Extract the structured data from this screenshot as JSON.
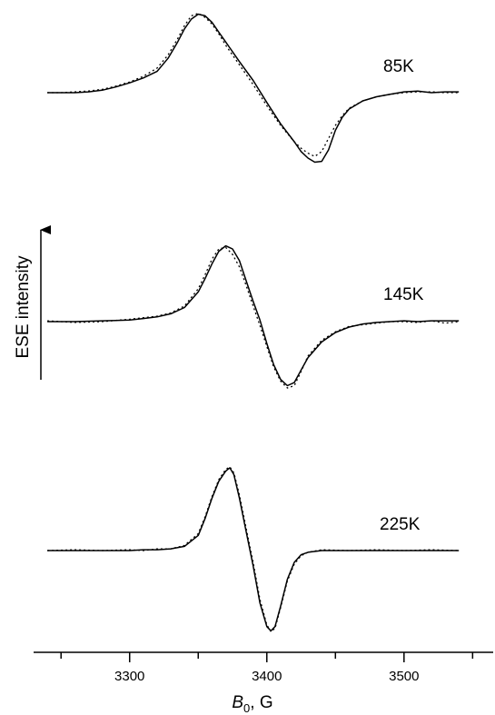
{
  "chart_data": {
    "type": "line",
    "xlabel_symbol": "B",
    "xlabel_subscript": "0",
    "xlabel_unit": ", G",
    "ylabel": "ESE intensity",
    "xlim": [
      3230,
      3565
    ],
    "x_ticks": [
      3300,
      3400,
      3500
    ],
    "grid": false,
    "legend": "none",
    "line_color": "#000000",
    "panels": [
      {
        "label": "85K",
        "series": [
          {
            "style": "solid",
            "x": [
              3240,
              3250,
              3260,
              3270,
              3280,
              3290,
              3300,
              3310,
              3320,
              3328,
              3335,
              3340,
              3345,
              3350,
              3355,
              3360,
              3365,
              3370,
              3380,
              3390,
              3400,
              3410,
              3420,
              3425,
              3430,
              3435,
              3440,
              3445,
              3450,
              3455,
              3460,
              3470,
              3480,
              3490,
              3500,
              3510,
              3520,
              3530,
              3540
            ],
            "y": [
              0.0,
              0.0,
              0.0,
              0.01,
              0.03,
              0.07,
              0.12,
              0.18,
              0.26,
              0.42,
              0.62,
              0.78,
              0.9,
              0.96,
              0.94,
              0.86,
              0.74,
              0.62,
              0.38,
              0.15,
              -0.12,
              -0.38,
              -0.6,
              -0.72,
              -0.8,
              -0.85,
              -0.84,
              -0.7,
              -0.46,
              -0.3,
              -0.2,
              -0.1,
              -0.05,
              -0.02,
              0.01,
              0.02,
              0.0,
              0.01,
              0.01
            ]
          },
          {
            "style": "dotted",
            "x": [
              3240,
              3250,
              3260,
              3270,
              3280,
              3290,
              3300,
              3310,
              3320,
              3328,
              3335,
              3340,
              3345,
              3350,
              3355,
              3360,
              3365,
              3370,
              3380,
              3390,
              3400,
              3410,
              3420,
              3425,
              3430,
              3435,
              3440,
              3445,
              3450,
              3455,
              3460,
              3470,
              3480,
              3490,
              3500,
              3510,
              3520,
              3530,
              3540
            ],
            "y": [
              0.0,
              0.0,
              0.01,
              0.02,
              0.04,
              0.08,
              0.13,
              0.2,
              0.3,
              0.46,
              0.66,
              0.82,
              0.94,
              0.97,
              0.92,
              0.84,
              0.72,
              0.58,
              0.34,
              0.1,
              -0.16,
              -0.4,
              -0.6,
              -0.68,
              -0.74,
              -0.78,
              -0.72,
              -0.56,
              -0.4,
              -0.28,
              -0.19,
              -0.1,
              -0.05,
              -0.02,
              0.0,
              0.01,
              0.01,
              0.0,
              0.0
            ]
          }
        ]
      },
      {
        "label": "145K",
        "series": [
          {
            "style": "solid",
            "x": [
              3240,
              3260,
              3280,
              3300,
              3310,
              3320,
              3330,
              3340,
              3350,
              3355,
              3360,
              3365,
              3370,
              3375,
              3380,
              3385,
              3390,
              3395,
              3400,
              3405,
              3410,
              3415,
              3420,
              3425,
              3430,
              3440,
              3450,
              3460,
              3470,
              3480,
              3490,
              3500,
              3510,
              3520,
              3530,
              3540
            ],
            "y": [
              0.0,
              0.0,
              0.01,
              0.02,
              0.04,
              0.06,
              0.1,
              0.18,
              0.38,
              0.55,
              0.74,
              0.9,
              0.97,
              0.93,
              0.78,
              0.52,
              0.26,
              0.02,
              -0.28,
              -0.55,
              -0.74,
              -0.82,
              -0.78,
              -0.62,
              -0.46,
              -0.26,
              -0.14,
              -0.07,
              -0.03,
              -0.01,
              0.0,
              0.01,
              0.0,
              0.01,
              0.01,
              0.01
            ]
          },
          {
            "style": "dotted",
            "x": [
              3240,
              3260,
              3280,
              3300,
              3310,
              3320,
              3330,
              3340,
              3350,
              3355,
              3360,
              3365,
              3370,
              3375,
              3380,
              3385,
              3390,
              3395,
              3400,
              3405,
              3410,
              3415,
              3420,
              3425,
              3430,
              3440,
              3450,
              3460,
              3470,
              3480,
              3490,
              3500,
              3510,
              3520,
              3530,
              3540
            ],
            "y": [
              0.01,
              -0.01,
              0.0,
              0.03,
              0.05,
              0.07,
              0.11,
              0.2,
              0.42,
              0.6,
              0.8,
              0.93,
              0.95,
              0.86,
              0.7,
              0.46,
              0.2,
              -0.05,
              -0.32,
              -0.58,
              -0.76,
              -0.85,
              -0.82,
              -0.64,
              -0.44,
              -0.24,
              -0.13,
              -0.06,
              -0.04,
              -0.02,
              0.0,
              0.0,
              -0.01,
              0.01,
              -0.02,
              0.0
            ]
          }
        ]
      },
      {
        "label": "225K",
        "series": [
          {
            "style": "solid",
            "x": [
              3240,
              3260,
              3280,
              3300,
              3310,
              3320,
              3330,
              3340,
              3350,
              3355,
              3360,
              3365,
              3370,
              3373,
              3376,
              3380,
              3385,
              3390,
              3395,
              3400,
              3403,
              3406,
              3410,
              3415,
              3420,
              3425,
              3430,
              3440,
              3460,
              3480,
              3500,
              3520,
              3540
            ],
            "y": [
              0.0,
              0.0,
              0.0,
              0.0,
              0.01,
              0.01,
              0.02,
              0.05,
              0.18,
              0.38,
              0.62,
              0.82,
              0.94,
              0.98,
              0.9,
              0.62,
              0.22,
              -0.18,
              -0.62,
              -0.9,
              -0.95,
              -0.9,
              -0.66,
              -0.34,
              -0.14,
              -0.05,
              -0.02,
              0.0,
              0.0,
              0.0,
              0.0,
              0.0,
              0.0
            ]
          },
          {
            "style": "dotted",
            "x": [
              3240,
              3260,
              3280,
              3300,
              3310,
              3320,
              3330,
              3340,
              3350,
              3355,
              3360,
              3365,
              3370,
              3373,
              3376,
              3380,
              3385,
              3390,
              3395,
              3400,
              3403,
              3406,
              3410,
              3415,
              3420,
              3425,
              3430,
              3440,
              3460,
              3480,
              3500,
              3520,
              3540
            ],
            "y": [
              0.0,
              0.01,
              0.0,
              0.01,
              0.0,
              0.02,
              0.02,
              0.06,
              0.2,
              0.4,
              0.64,
              0.84,
              0.96,
              0.99,
              0.92,
              0.66,
              0.26,
              -0.14,
              -0.58,
              -0.88,
              -0.96,
              -0.92,
              -0.68,
              -0.36,
              -0.16,
              -0.06,
              -0.02,
              0.01,
              0.0,
              0.01,
              0.0,
              0.01,
              0.0
            ]
          }
        ]
      }
    ]
  }
}
